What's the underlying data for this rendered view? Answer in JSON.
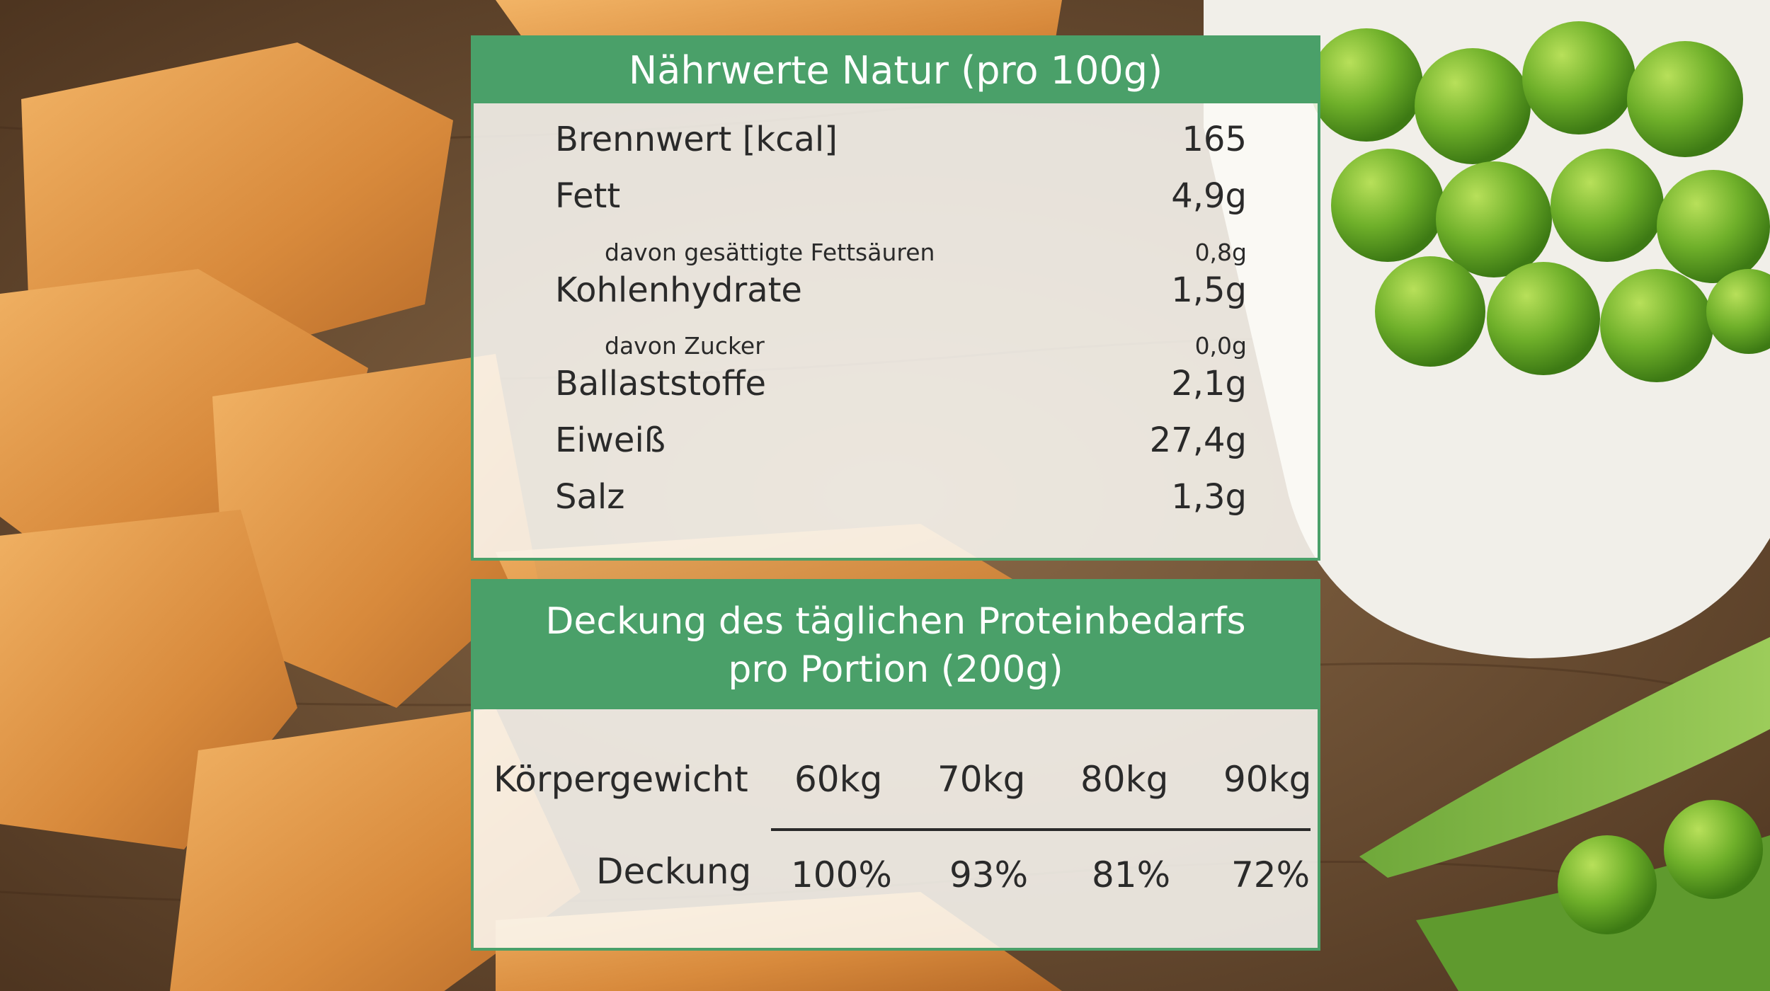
{
  "nutrition": {
    "title": "Nährwerte Natur (pro 100g)",
    "rows": [
      {
        "label": "Brennwert [kcal]",
        "value": "165",
        "level": "main"
      },
      {
        "label": "Fett",
        "value": "4,9g",
        "level": "main"
      },
      {
        "label": "davon gesättigte Fettsäuren",
        "value": "0,8g",
        "level": "sub"
      },
      {
        "label": "Kohlenhydrate",
        "value": "1,5g",
        "level": "main"
      },
      {
        "label": "davon Zucker",
        "value": "0,0g",
        "level": "sub"
      },
      {
        "label": "Ballaststoffe",
        "value": "2,1g",
        "level": "main"
      },
      {
        "label": "Eiweiß",
        "value": "27,4g",
        "level": "main"
      },
      {
        "label": "Salz",
        "value": "1,3g",
        "level": "main"
      }
    ]
  },
  "protein": {
    "title_line1": "Deckung des täglichen Proteinbedarfs",
    "title_line2": "pro Portion (200g)",
    "weight_label": "Körpergewicht",
    "coverage_label": "Deckung",
    "weights": [
      "60kg",
      "70kg",
      "80kg",
      "90kg"
    ],
    "coverage": [
      "100%",
      "93%",
      "81%",
      "72%"
    ]
  },
  "colors": {
    "accent": "#4aa069",
    "panel_bg": "#fcfaf6",
    "text": "#2a2a2a"
  }
}
